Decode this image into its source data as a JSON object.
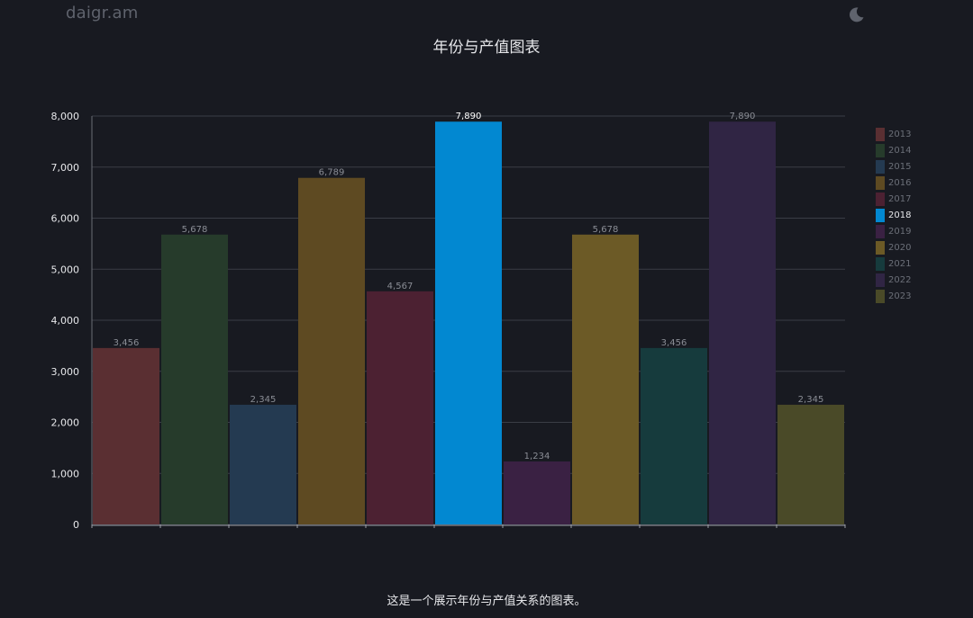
{
  "header": {
    "logo_text": "daigr.am",
    "theme_toggle_icon": "moon-icon"
  },
  "caption": "这是一个展示年份与产值关系的图表。",
  "chart_data": {
    "type": "bar",
    "title": "年份与产值图表",
    "xlabel": "",
    "ylabel": "",
    "categories": [
      "2013",
      "2014",
      "2015",
      "2016",
      "2017",
      "2018",
      "2019",
      "2020",
      "2021",
      "2022",
      "2023"
    ],
    "values": [
      3456,
      5678,
      2345,
      6789,
      4567,
      7890,
      1234,
      5678,
      3456,
      7890,
      2345
    ],
    "value_labels": [
      "3,456",
      "5,678",
      "2,345",
      "6,789",
      "4,567",
      "7,890",
      "1,234",
      "5,678",
      "3,456",
      "7,890",
      "2,345"
    ],
    "colors": [
      "#5a2f32",
      "#263b2b",
      "#243a51",
      "#5e4a22",
      "#4c2132",
      "#0288d1",
      "#3a2143",
      "#6c5a26",
      "#163b3d",
      "#302544",
      "#4a4a28"
    ],
    "highlight": "2018",
    "ylim": [
      0,
      8000
    ],
    "yticks": [
      0,
      1000,
      2000,
      3000,
      4000,
      5000,
      6000,
      7000,
      8000
    ],
    "ytick_labels": [
      "0",
      "1,000",
      "2,000",
      "3,000",
      "4,000",
      "5,000",
      "6,000",
      "7,000",
      "8,000"
    ],
    "grid": true,
    "legend": "right"
  }
}
